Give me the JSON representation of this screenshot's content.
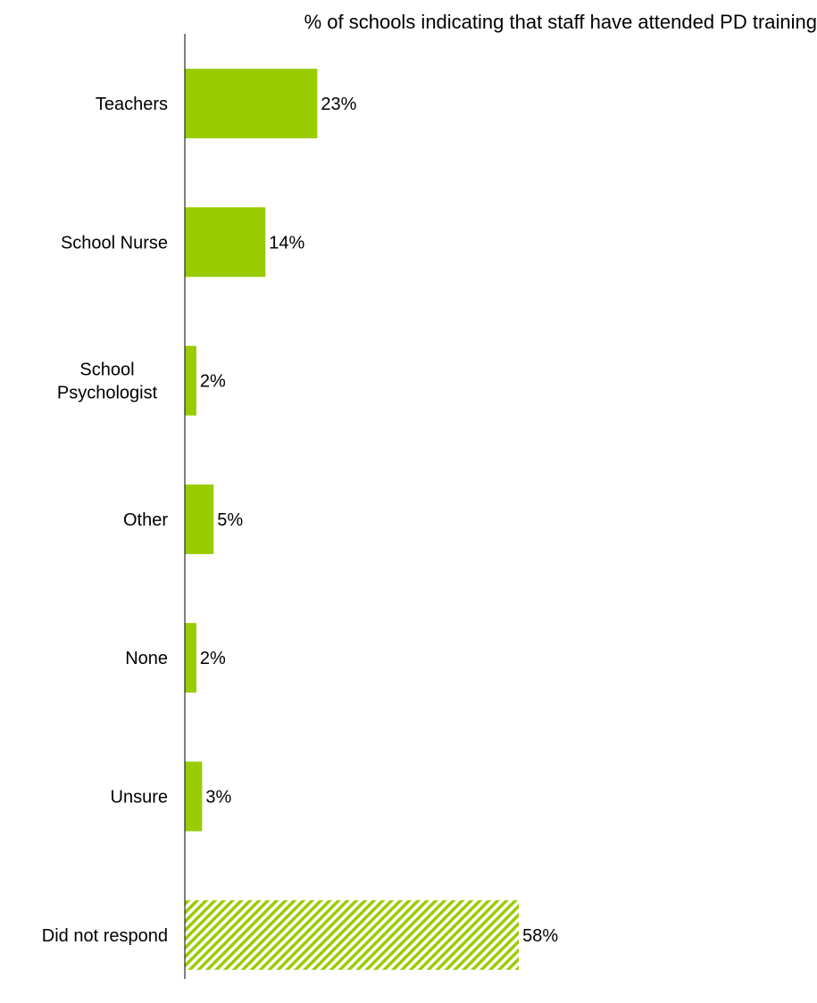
{
  "chart_data": {
    "type": "bar",
    "orientation": "horizontal",
    "title": "% of schools indicating that staff have attended PD training",
    "categories": [
      [
        "Teachers"
      ],
      [
        "School Nurse"
      ],
      [
        "School",
        "Psychologist"
      ],
      [
        "Other"
      ],
      [
        "None"
      ],
      [
        "Unsure"
      ],
      [
        "Did not respond"
      ]
    ],
    "values": [
      23,
      14,
      2,
      5,
      2,
      3,
      58
    ],
    "value_labels": [
      "23%",
      "14%",
      "2%",
      "5%",
      "2%",
      "3%",
      "58%"
    ],
    "patterned": [
      false,
      false,
      false,
      false,
      false,
      false,
      true
    ],
    "xlabel": "",
    "ylabel": "",
    "xlim": [
      0,
      110
    ],
    "grid": false,
    "legend": "none",
    "bar_color": "#99cc00",
    "hatch_color": "#99cc00"
  }
}
